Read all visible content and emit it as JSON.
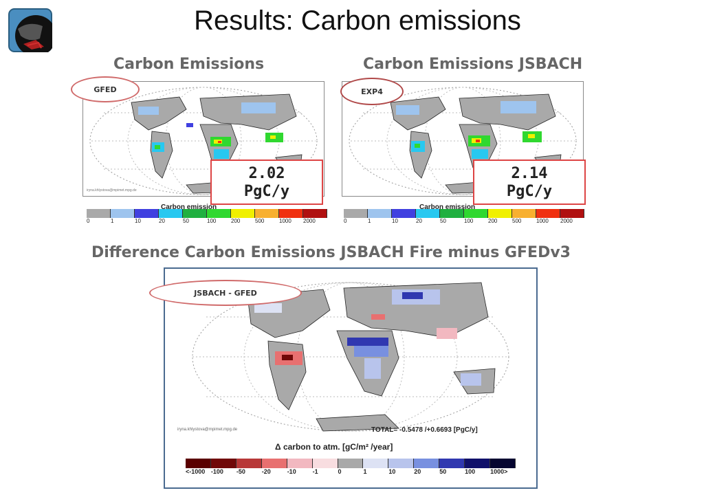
{
  "title": "Results: Carbon emissions",
  "logo_icon": "globe-logo-icon",
  "panel_left": {
    "heading": "Carbon Emissions",
    "tag": "GFED",
    "value_line1": "2.02",
    "value_line2": "PgC/y",
    "colorbar_title": "Carbon emission",
    "credit": "iryna.khlystova@mpimet.mpg.de",
    "ticks": [
      "0",
      "1",
      "10",
      "20",
      "50",
      "100",
      "200",
      "500",
      "1000",
      "2000"
    ]
  },
  "panel_right": {
    "heading": "Carbon Emissions JSBACH",
    "tag": "EXP4",
    "value_line1": "2.14",
    "value_line2": "PgC/y",
    "colorbar_title": "Carbon emission",
    "ticks": [
      "0",
      "1",
      "10",
      "20",
      "50",
      "100",
      "200",
      "500",
      "1000",
      "2000"
    ]
  },
  "panel_diff": {
    "heading": "Difference Carbon Emissions JSBACH Fire minus GFEDv3",
    "tag": "JSBACH - GFED",
    "total_text": "TOTAL= -0.5478 /+0.6693 [PgC/y]",
    "credit": "iryna.khlystova@mpimet.mpg.de",
    "colorbar_title": "Δ carbon to atm. [gC/m² /year]",
    "ticks": [
      "<-1000",
      "-100",
      "-50",
      "-20",
      "-10",
      "-1",
      "0",
      "1",
      "10",
      "20",
      "50",
      "100",
      "1000>"
    ]
  },
  "colors": {
    "emission_scale": [
      "#a9a9a9",
      "#9ec4ee",
      "#4040e0",
      "#28c8f0",
      "#20b040",
      "#30d830",
      "#f0f000",
      "#f8b030",
      "#f03010",
      "#b01010"
    ],
    "diff_scale": [
      "#5a0000",
      "#700808",
      "#b83838",
      "#e87070",
      "#f2b8c0",
      "#f8dde0",
      "#a9a9a9",
      "#dde2f4",
      "#b8c4ec",
      "#7890e0",
      "#3038b0",
      "#10106a",
      "#050530"
    ],
    "accent_oval": "#d06a6a",
    "value_border": "#dd4444"
  }
}
